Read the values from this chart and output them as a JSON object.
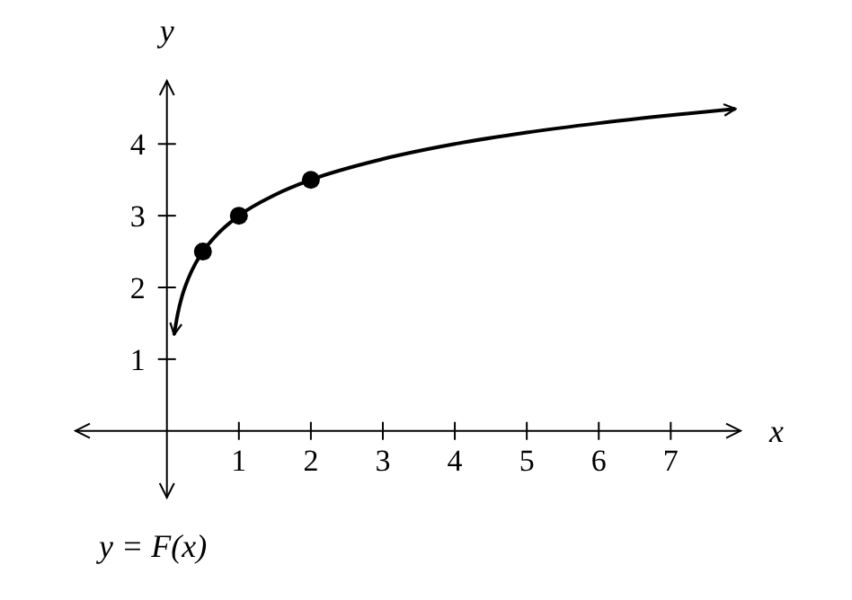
{
  "chart_data": {
    "type": "line",
    "xlabel": "x",
    "ylabel": "y",
    "xlim": [
      -1.27,
      7.97
    ],
    "ylim": [
      -0.93,
      4.88
    ],
    "xticks": [
      1,
      2,
      3,
      4,
      5,
      6,
      7
    ],
    "yticks": [
      1,
      2,
      3,
      4
    ],
    "grid": false,
    "series": [
      {
        "color": "#000000",
        "marker": "none",
        "x": [
          0.1,
          0.15,
          0.2,
          0.3,
          0.4,
          0.5,
          0.7,
          1,
          1.5,
          2,
          3,
          4,
          5,
          6,
          7,
          7.9
        ],
        "values": [
          1.34,
          1.63,
          1.84,
          2.13,
          2.34,
          2.5,
          2.74,
          3,
          3.29,
          3.5,
          3.79,
          4,
          4.16,
          4.29,
          4.4,
          4.49
        ]
      },
      {
        "type": "scatter",
        "color": "#000000",
        "marker": "circle",
        "x": [
          0.5,
          1,
          2
        ],
        "values": [
          2.5,
          3,
          3.5
        ]
      }
    ],
    "annotations": [
      "y = F(x)"
    ]
  }
}
